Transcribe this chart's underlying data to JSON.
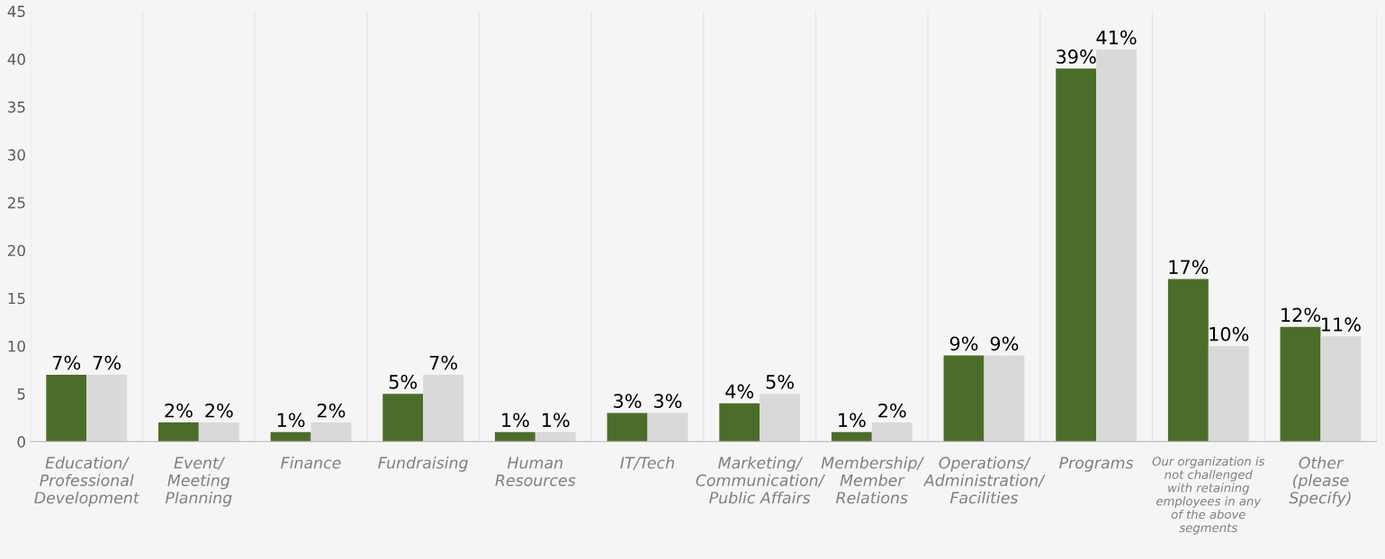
{
  "chart_data": {
    "type": "bar",
    "categories": [
      "Education/\nProfessional\nDevelopment",
      "Event/\nMeeting\nPlanning",
      "Finance",
      "Fundraising",
      "Human\nResources",
      "IT/Tech",
      "Marketing/\nCommunication/\nPublic Affairs",
      "Membership/\nMember\nRelations",
      "Operations/\nAdministration/\nFacilities",
      "Programs",
      "Our organization is\nnot challenged\nwith retaining\nemployees in any\nof the above\nsegments",
      "Other\n(please\nSpecify)"
    ],
    "series": [
      {
        "color": "#4a6e2a",
        "values": [
          7,
          2,
          1,
          5,
          1,
          3,
          4,
          1,
          9,
          39,
          17,
          12
        ],
        "value_labels": [
          "7%",
          "2%",
          "1%",
          "5%",
          "1%",
          "3%",
          "4%",
          "1%",
          "9%",
          "39%",
          "17%",
          "12%"
        ]
      },
      {
        "color": "#d9d9d9",
        "values": [
          7,
          2,
          2,
          7,
          1,
          3,
          5,
          2,
          9,
          41,
          10,
          11
        ],
        "value_labels": [
          "7%",
          "2%",
          "2%",
          "7%",
          "1%",
          "3%",
          "5%",
          "2%",
          "9%",
          "41%",
          "10%",
          "11%"
        ]
      }
    ],
    "ylim": [
      0,
      45
    ],
    "yticks": [
      0,
      5,
      10,
      15,
      20,
      25,
      30,
      35,
      40,
      45
    ],
    "grid": "x",
    "legend": false
  }
}
